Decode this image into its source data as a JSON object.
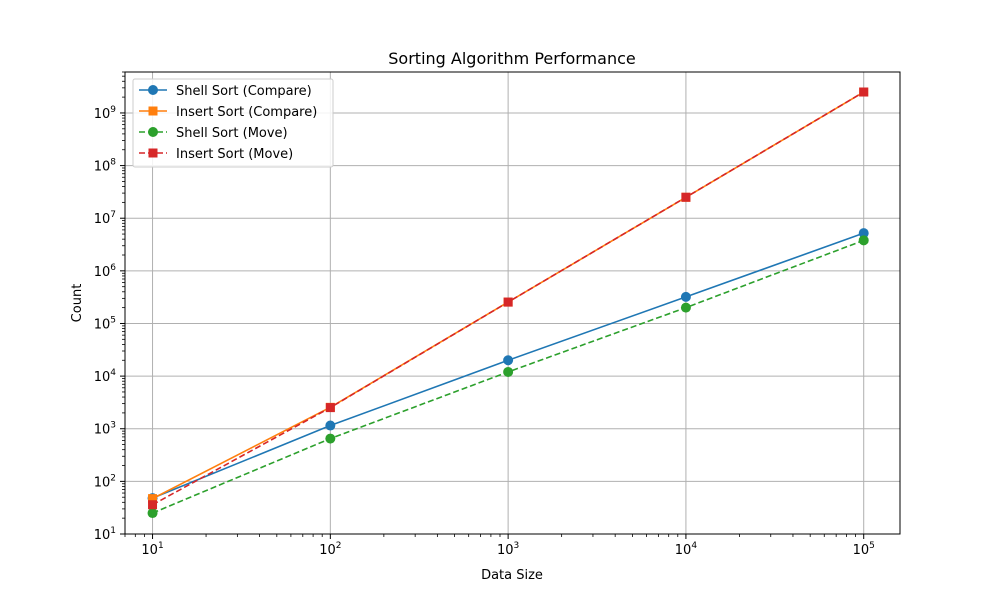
{
  "chart_data": {
    "type": "line",
    "title": "Sorting Algorithm Performance",
    "xlabel": "Data Size",
    "ylabel": "Count",
    "x_scale": "log",
    "y_scale": "log",
    "xlim": [
      7,
      160000
    ],
    "ylim": [
      10,
      6000000000
    ],
    "grid": true,
    "legend_position": "top-left",
    "x": [
      10,
      100,
      1000,
      10000,
      100000
    ],
    "x_tick_values": [
      10,
      100,
      1000,
      10000,
      100000
    ],
    "y_tick_values": [
      10,
      100,
      1000,
      10000,
      100000,
      1000000,
      10000000,
      100000000,
      1000000000
    ],
    "tick_base": "10",
    "x_tick_exponents": [
      "1",
      "2",
      "3",
      "4",
      "5"
    ],
    "y_tick_exponents": [
      "1",
      "2",
      "3",
      "4",
      "5",
      "6",
      "7",
      "8",
      "9"
    ],
    "series": [
      {
        "name": "Shell Sort (Compare)",
        "values": [
          48,
          1150,
          20000,
          320000,
          5200000
        ],
        "color": "#1f77b4",
        "marker": "circle",
        "line_style": "solid"
      },
      {
        "name": "Insert Sort (Compare)",
        "values": [
          47,
          2550,
          255000,
          25000000,
          2500000000
        ],
        "color": "#ff7f0e",
        "marker": "square",
        "line_style": "solid"
      },
      {
        "name": "Shell Sort (Move)",
        "values": [
          25,
          650,
          12000,
          200000,
          3800000
        ],
        "color": "#2ca02c",
        "marker": "circle",
        "line_style": "dashed"
      },
      {
        "name": "Insert Sort (Move)",
        "values": [
          36,
          2520,
          255000,
          25000000,
          2500000000
        ],
        "color": "#d62728",
        "marker": "square",
        "line_style": "dashed"
      }
    ]
  }
}
